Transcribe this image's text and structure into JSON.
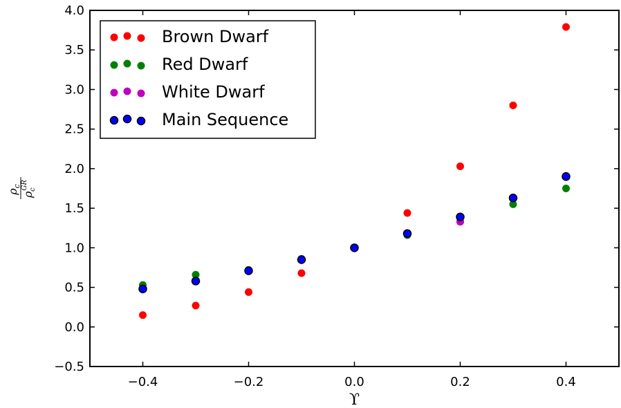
{
  "chart_data": {
    "type": "scatter",
    "title": "",
    "xlabel": "ϒ",
    "ylabel": {
      "num_base": "ρ",
      "num_sub": "c",
      "den_base": "ρ",
      "den_sub": "c",
      "den_sup": "GR"
    },
    "xlim": [
      -0.5,
      0.5
    ],
    "ylim": [
      -0.5,
      4.0
    ],
    "xticks": [
      -0.4,
      -0.2,
      0.0,
      0.2,
      0.4
    ],
    "xtick_labels": [
      "−0.4",
      "−0.2",
      "0.0",
      "0.2",
      "0.4"
    ],
    "yticks": [
      -0.5,
      0.0,
      0.5,
      1.0,
      1.5,
      2.0,
      2.5,
      3.0,
      3.5,
      4.0
    ],
    "ytick_labels": [
      "−0.5",
      "0.0",
      "0.5",
      "1.0",
      "1.5",
      "2.0",
      "2.5",
      "3.0",
      "3.5",
      "4.0"
    ],
    "grid": false,
    "legend_position": "top-left",
    "x": [
      -0.4,
      -0.3,
      -0.2,
      -0.1,
      0.0,
      0.1,
      0.2,
      0.3,
      0.4
    ],
    "series": [
      {
        "name": "Brown Dwarf",
        "color": "#ff0000",
        "edge": "#ff0000",
        "values": [
          0.15,
          0.27,
          0.44,
          0.68,
          1.0,
          1.44,
          2.03,
          2.8,
          3.79
        ]
      },
      {
        "name": "Red Dwarf",
        "color": "#008000",
        "edge": "#008000",
        "values": [
          0.53,
          0.66,
          0.72,
          0.86,
          1.0,
          1.16,
          1.33,
          1.55,
          1.75
        ]
      },
      {
        "name": "White Dwarf",
        "color": "#bf00bf",
        "edge": "#bf00bf",
        "values": [
          0.48,
          0.58,
          0.71,
          0.85,
          1.0,
          1.18,
          1.33,
          1.62,
          1.91
        ]
      },
      {
        "name": "Main Sequence",
        "color": "#0000ff",
        "edge": "#000000",
        "values": [
          0.48,
          0.58,
          0.71,
          0.85,
          1.0,
          1.18,
          1.39,
          1.63,
          1.9
        ]
      }
    ]
  }
}
